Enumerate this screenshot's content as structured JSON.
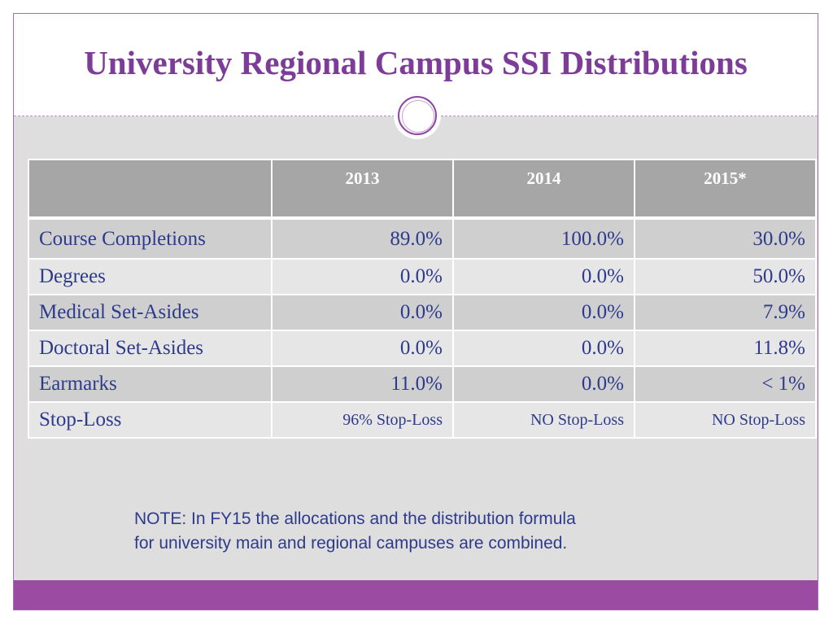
{
  "slide": {
    "title": "University Regional Campus SSI Distributions",
    "accent_color": "#7d3c98",
    "footer_color": "#9b4ba1"
  },
  "table": {
    "columns": [
      "",
      "2013",
      "2014",
      "2015*"
    ],
    "rows": [
      {
        "label": "Course Completions",
        "values": [
          "89.0%",
          "100.0%",
          "30.0%"
        ]
      },
      {
        "label": "Degrees",
        "values": [
          "0.0%",
          "0.0%",
          "50.0%"
        ]
      },
      {
        "label": "Medical Set-Asides",
        "values": [
          "0.0%",
          "0.0%",
          "7.9%"
        ]
      },
      {
        "label": "Doctoral Set-Asides",
        "values": [
          "0.0%",
          "0.0%",
          "11.8%"
        ]
      },
      {
        "label": "Earmarks",
        "values": [
          "11.0%",
          "0.0%",
          "< 1%"
        ]
      },
      {
        "label": "Stop-Loss",
        "values": [
          "96% Stop-Loss",
          "NO Stop-Loss",
          "NO Stop-Loss"
        ]
      }
    ]
  },
  "note": {
    "text": "NOTE:  In FY15 the allocations and the distribution formula\nfor university main and regional campuses are combined."
  }
}
